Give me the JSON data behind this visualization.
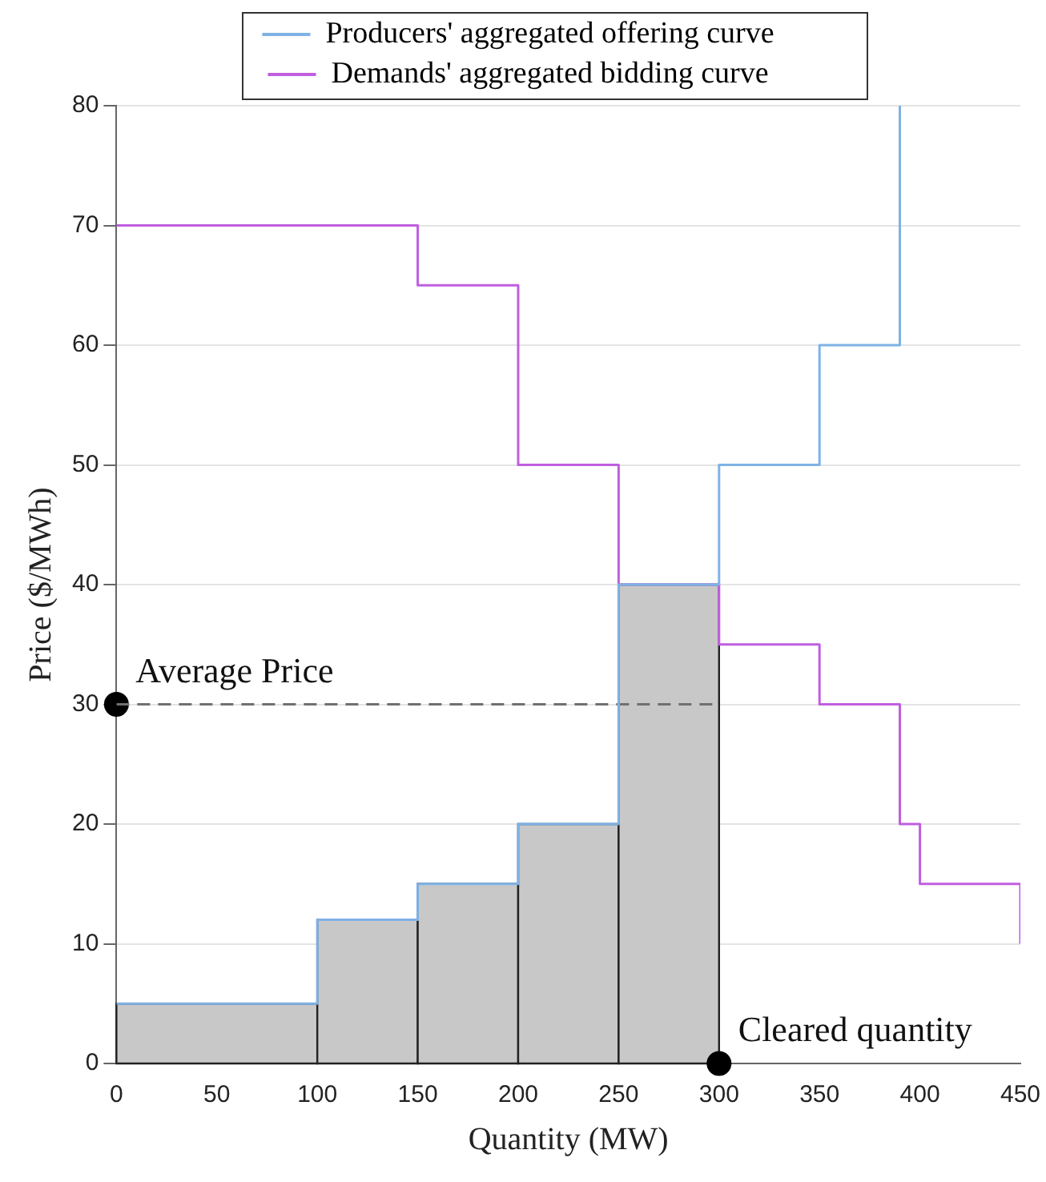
{
  "chart_data": {
    "type": "histogram",
    "xlabel": "Quantity (MW)",
    "ylabel": "Price ($/MWh)",
    "bins": [
      0,
      100,
      150,
      200,
      250,
      300
    ],
    "values": [
      5,
      12,
      15,
      20,
      40
    ],
    "color": "#c8c8c8",
    "series": [
      {
        "name": "Producers' aggregated offering curve",
        "type": "step",
        "color": "#7fb2e5",
        "x": [
          0,
          100,
          150,
          200,
          250,
          300,
          350,
          390
        ],
        "values": [
          5,
          12,
          15,
          20,
          40,
          50,
          60,
          80
        ]
      },
      {
        "name": "Demands' aggregated bidding curve",
        "type": "step",
        "color": "#c05ee0",
        "x": [
          0,
          150,
          200,
          250,
          300,
          350,
          390,
          400,
          450
        ],
        "values": [
          70,
          65,
          50,
          40,
          35,
          30,
          20,
          15,
          10
        ]
      },
      {
        "type": "line",
        "color": "#707070",
        "line_style": "dashed",
        "x": [
          0,
          300
        ],
        "values": [
          30,
          30
        ]
      },
      {
        "type": "scatter",
        "color": "#000000",
        "marker": "circle",
        "x": [
          0,
          300
        ],
        "values": [
          30,
          0
        ]
      }
    ],
    "annotations": [
      {
        "text": "Average Price",
        "x": 0,
        "y": 30
      },
      {
        "text": "Cleared quantity",
        "x": 300,
        "y": 0
      }
    ],
    "xlim": [
      0,
      450
    ],
    "xticks": [
      0,
      50,
      100,
      150,
      200,
      250,
      300,
      350,
      400,
      450
    ],
    "ylim": [
      0,
      80
    ],
    "yticks": [
      0,
      10,
      20,
      30,
      40,
      50,
      60,
      70,
      80
    ],
    "grid": "y",
    "legend": "top"
  }
}
